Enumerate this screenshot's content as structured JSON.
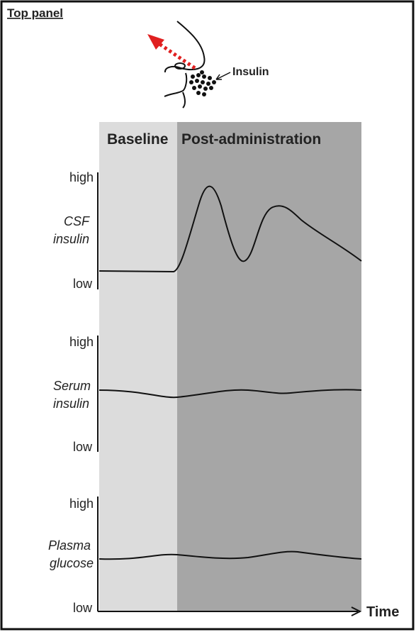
{
  "header": {
    "title": "Top panel"
  },
  "illustration": {
    "label": "Insulin"
  },
  "phases": [
    "Baseline",
    "Post-administration"
  ],
  "panels": [
    {
      "label_lines": [
        "CSF",
        "insulin"
      ],
      "high": "high",
      "low": "low"
    },
    {
      "label_lines": [
        "Serum",
        "insulin"
      ],
      "high": "high",
      "low": "low"
    },
    {
      "label_lines": [
        "Plasma",
        "glucose"
      ],
      "high": "high",
      "low": "low"
    }
  ],
  "x_axis": {
    "label": "Time"
  }
}
